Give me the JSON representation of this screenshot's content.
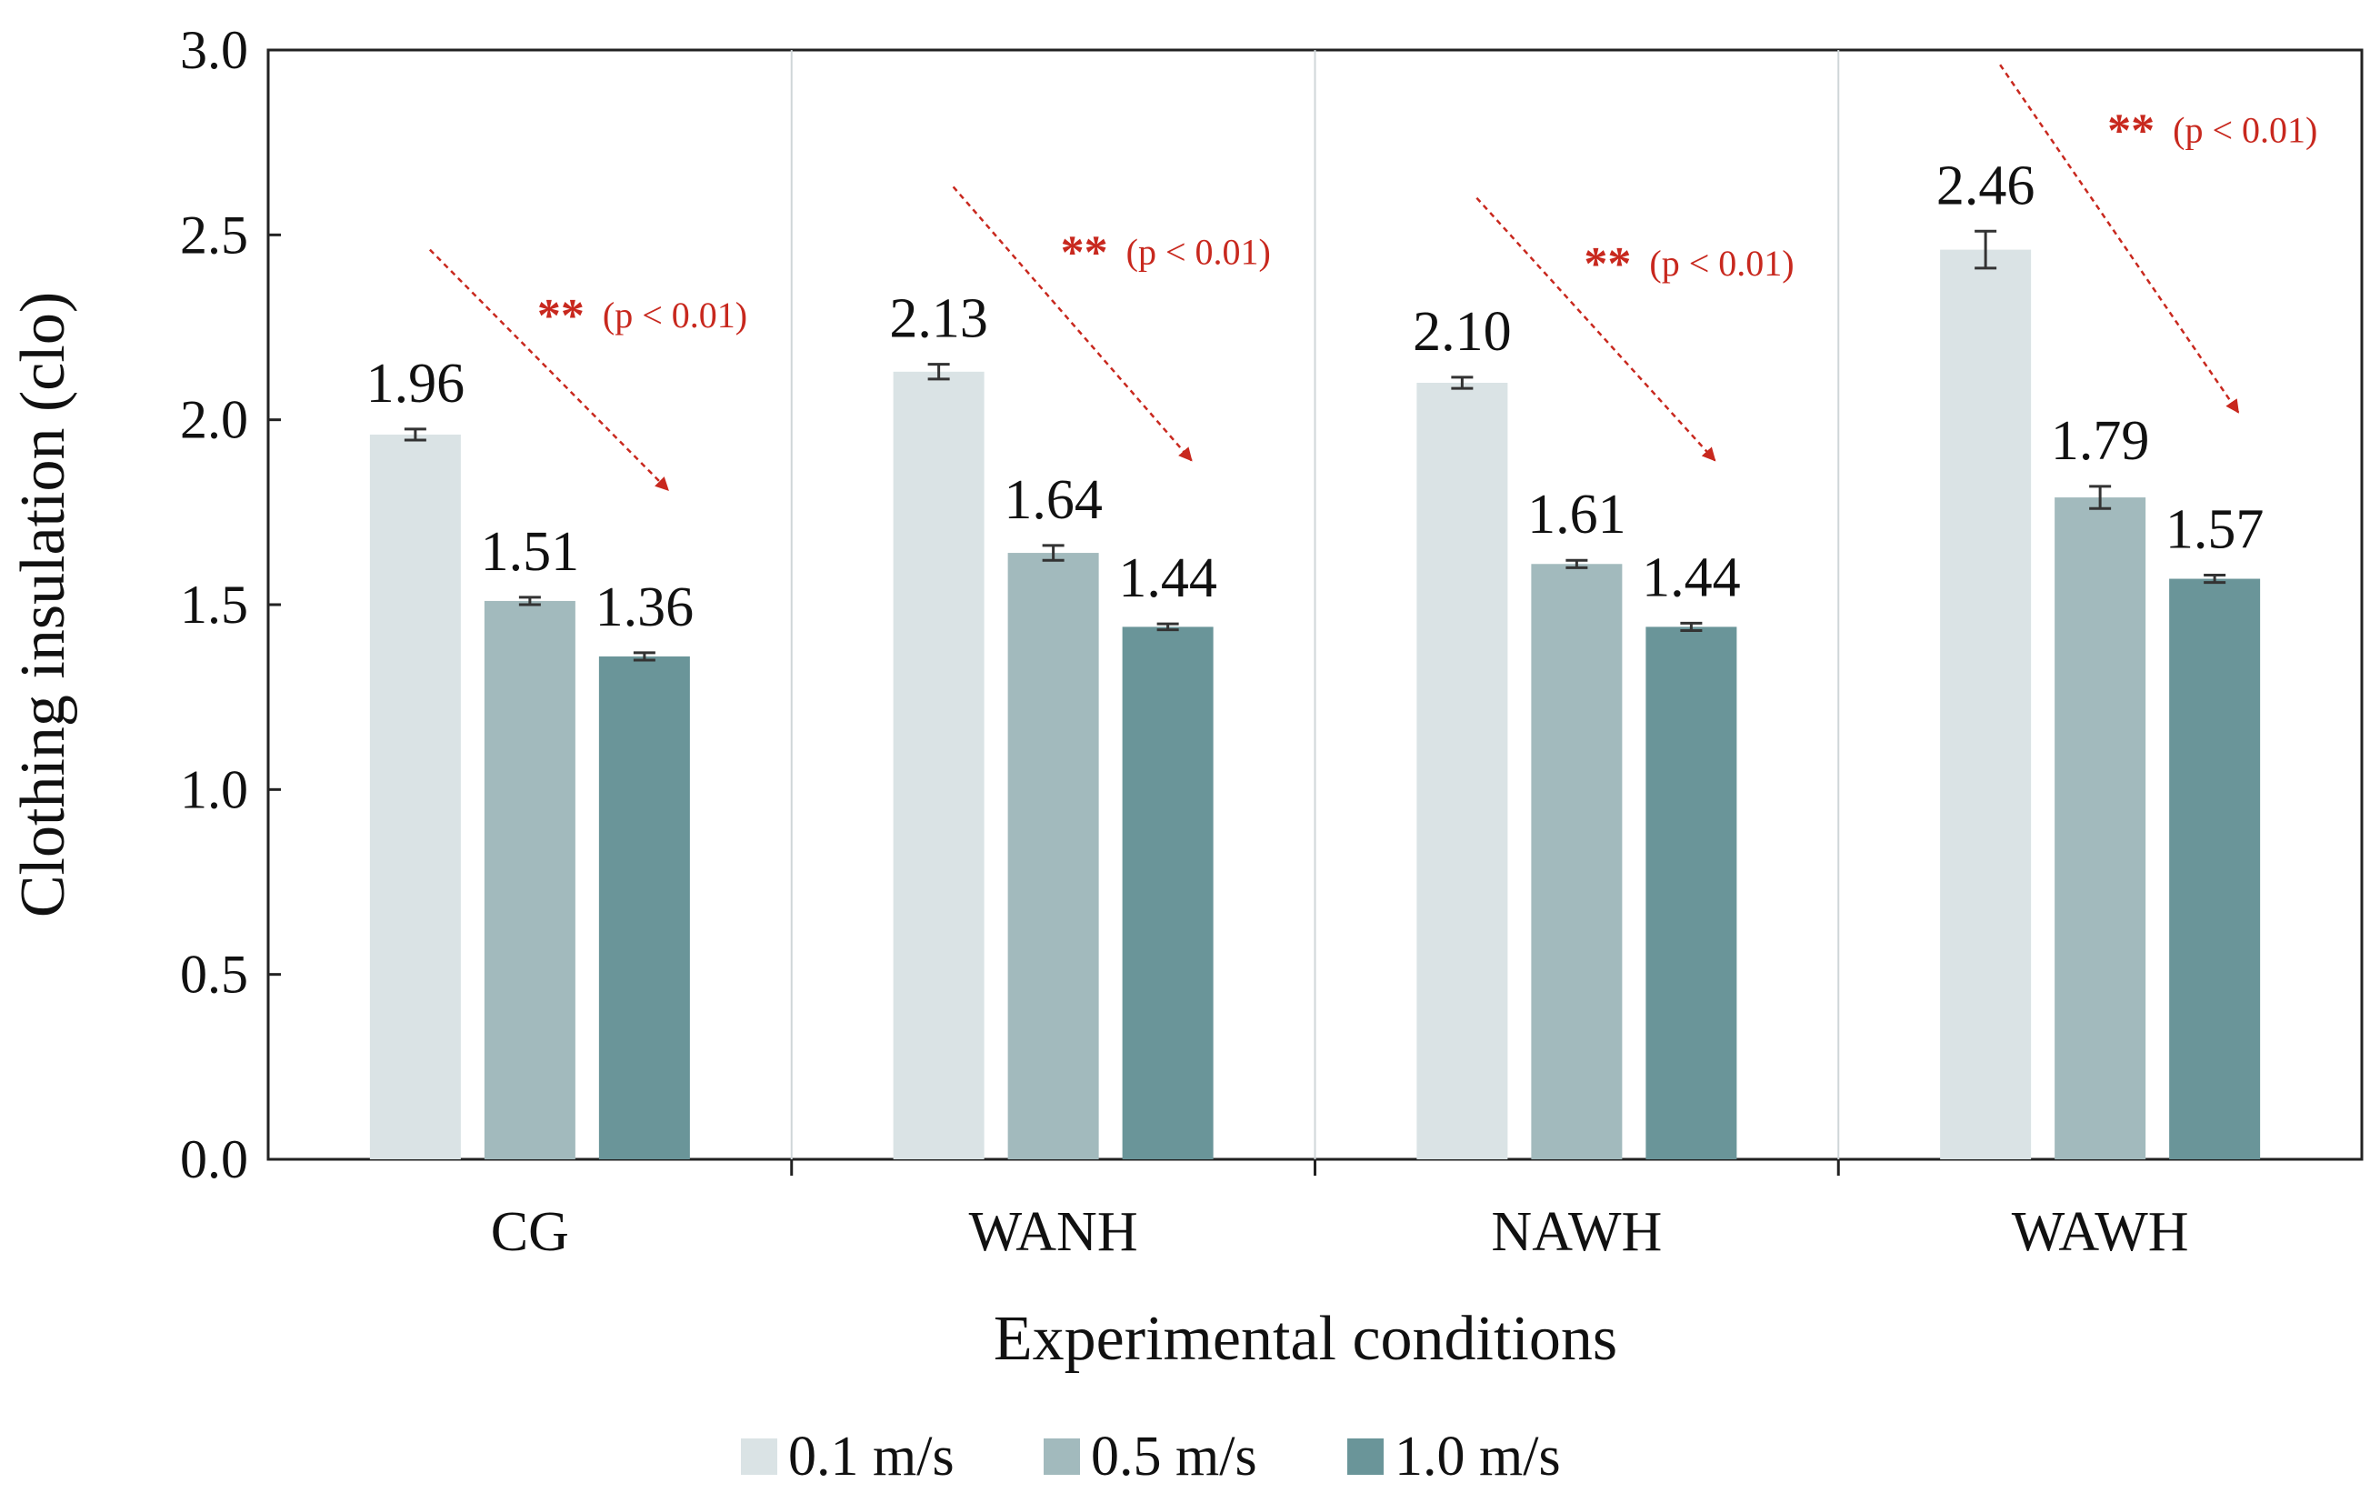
{
  "chart_data": {
    "type": "bar",
    "categories": [
      "CG",
      "WANH",
      "NAWH",
      "WAWH"
    ],
    "series": [
      {
        "name": "0.1 m/s",
        "values": [
          1.96,
          2.13,
          2.1,
          2.46
        ],
        "errors": [
          0.015,
          0.02,
          0.015,
          0.05
        ],
        "labels": [
          "1.96",
          "2.13",
          "2.10",
          "2.46"
        ],
        "color": "#dae3e5"
      },
      {
        "name": "0.5 m/s",
        "values": [
          1.51,
          1.64,
          1.61,
          1.79
        ],
        "errors": [
          0.01,
          0.02,
          0.01,
          0.03
        ],
        "labels": [
          "1.51",
          "1.64",
          "1.61",
          "1.79"
        ],
        "color": "#a2babd"
      },
      {
        "name": "1.0 m/s",
        "values": [
          1.36,
          1.44,
          1.44,
          1.57
        ],
        "errors": [
          0.01,
          0.008,
          0.01,
          0.01
        ],
        "labels": [
          "1.36",
          "1.44",
          "1.44",
          "1.57"
        ],
        "color": "#6a9599"
      }
    ],
    "xlabel": "Experimental conditions",
    "ylabel": "Clothing insulation (clo)",
    "ylim": [
      0,
      3.0
    ],
    "yticks": [
      "0.0",
      "0.5",
      "1.0",
      "1.5",
      "2.0",
      "2.5",
      "3.0"
    ],
    "annotations": [
      {
        "stars": "**",
        "text": "(p < 0.01)"
      },
      {
        "stars": "**",
        "text": "(p < 0.01)"
      },
      {
        "stars": "**",
        "text": "(p < 0.01)"
      },
      {
        "stars": "**",
        "text": "(p < 0.01)"
      }
    ],
    "annotation_color": "#c8281e",
    "legend_position": "bottom",
    "grid": false
  }
}
